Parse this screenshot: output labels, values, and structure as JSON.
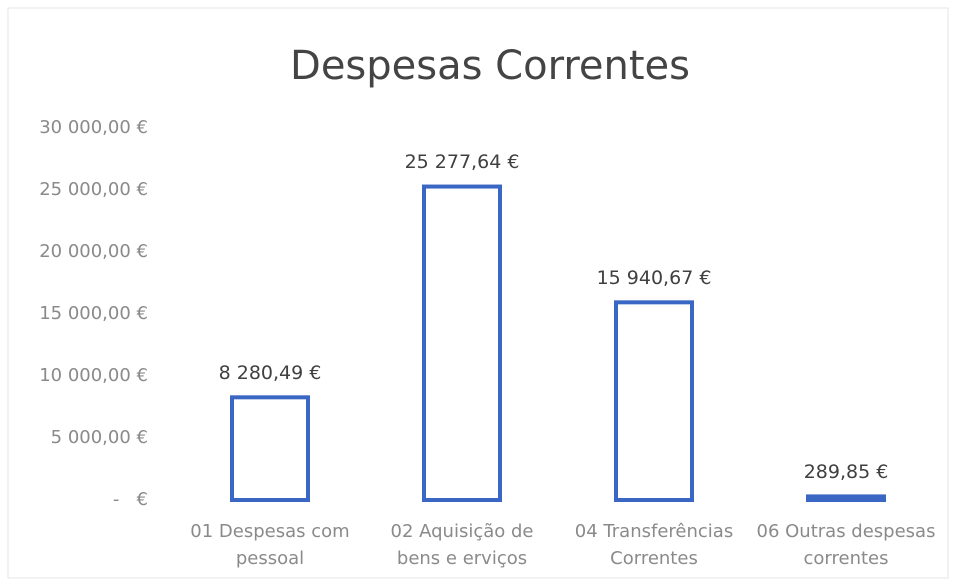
{
  "chart_data": {
    "type": "bar",
    "title": "Despesas Correntes",
    "categories": [
      "01 Despesas com pessoal",
      "02 Aquisição de bens e erviços",
      "04 Transferências Correntes",
      "06 Outras despesas correntes"
    ],
    "values": [
      8280.49,
      25277.64,
      15940.67,
      289.85
    ],
    "value_labels": [
      "8 280,49 €",
      "25 277,64 €",
      "15 940,67 €",
      "289,85 €"
    ],
    "color": "#3a66c4",
    "ylim": [
      0,
      30000
    ],
    "yticks": [
      {
        "value": 0,
        "label": "-   €"
      },
      {
        "value": 5000,
        "label": "5 000,00 €"
      },
      {
        "value": 10000,
        "label": "10 000,00 €"
      },
      {
        "value": 15000,
        "label": "15 000,00 €"
      },
      {
        "value": 20000,
        "label": "20 000,00 €"
      },
      {
        "value": 25000,
        "label": "25 000,00 €"
      },
      {
        "value": 30000,
        "label": "30 000,00 €"
      }
    ],
    "grid": false
  }
}
